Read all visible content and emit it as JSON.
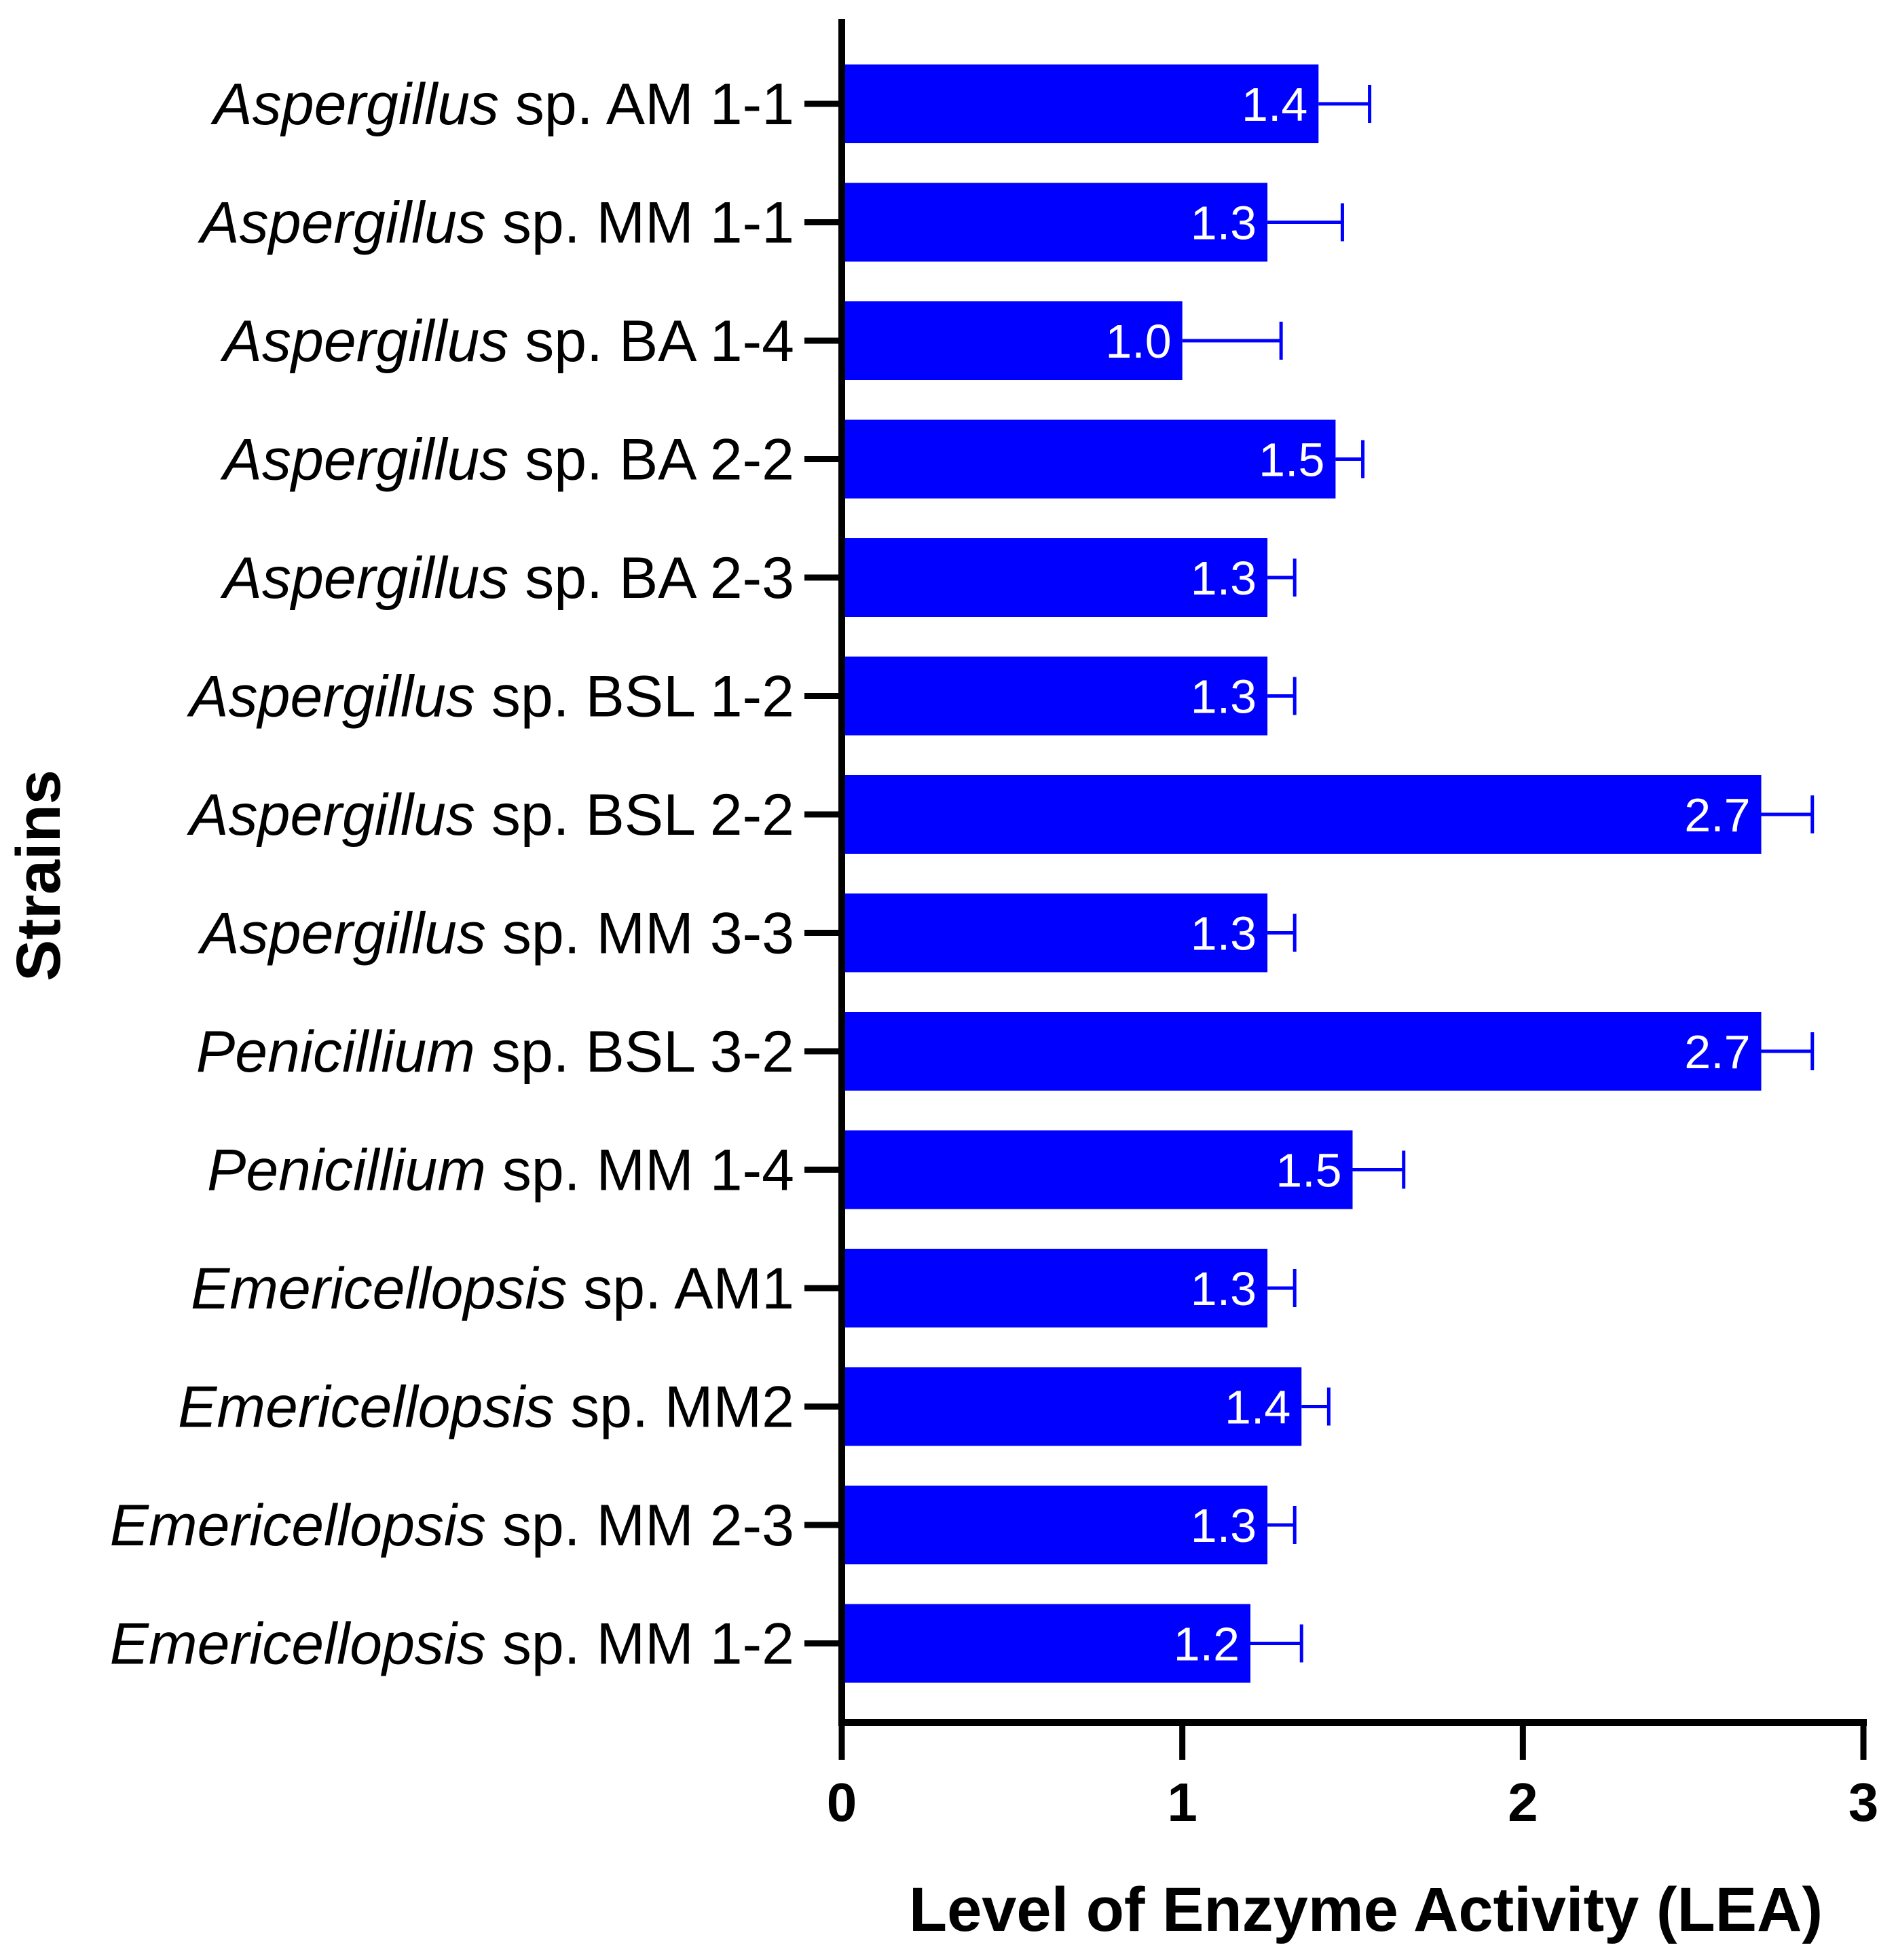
{
  "chart_data": {
    "type": "bar",
    "orientation": "horizontal",
    "title": "",
    "xlabel": "Level of Enzyme Activity (LEA)",
    "ylabel": "Strains",
    "xlim": [
      0,
      3
    ],
    "xticks": [
      "0",
      "1",
      "2",
      "3"
    ],
    "grid": false,
    "bar_color": "#0000FF",
    "error_bar_color": "#0000FF",
    "categories": [
      {
        "genus": "Aspergillus",
        "suffix": " sp. AM 1-1"
      },
      {
        "genus": "Aspergillus",
        "suffix": " sp. MM 1-1"
      },
      {
        "genus": "Aspergillus",
        "suffix": " sp. BA 1-4"
      },
      {
        "genus": "Aspergillus",
        "suffix": " sp. BA 2-2"
      },
      {
        "genus": "Aspergillus",
        "suffix": " sp. BA 2-3"
      },
      {
        "genus": "Aspergillus",
        "suffix": " sp. BSL 1-2"
      },
      {
        "genus": "Aspergillus",
        "suffix": " sp. BSL 2-2"
      },
      {
        "genus": "Aspergillus",
        "suffix": " sp. MM 3-3"
      },
      {
        "genus": "Penicillium",
        "suffix": " sp. BSL 3-2"
      },
      {
        "genus": "Penicillium",
        "suffix": " sp. MM 1-4"
      },
      {
        "genus": "Emericellopsis",
        "suffix": " sp. AM1"
      },
      {
        "genus": "Emericellopsis",
        "suffix": " sp. MM2"
      },
      {
        "genus": "Emericellopsis",
        "suffix": " sp. MM 2-3"
      },
      {
        "genus": "Emericellopsis",
        "suffix": " sp. MM 1-2"
      }
    ],
    "values": [
      1.4,
      1.25,
      1.0,
      1.45,
      1.25,
      1.25,
      2.7,
      1.25,
      2.7,
      1.5,
      1.25,
      1.35,
      1.25,
      1.2
    ],
    "errors": [
      0.15,
      0.22,
      0.29,
      0.08,
      0.08,
      0.08,
      0.15,
      0.08,
      0.15,
      0.15,
      0.08,
      0.08,
      0.08,
      0.15
    ],
    "data_labels": [
      "1.4",
      "1.3",
      "1.0",
      "1.5",
      "1.3",
      "1.3",
      "2.7",
      "1.3",
      "2.7",
      "1.5",
      "1.3",
      "1.4",
      "1.3",
      "1.2"
    ]
  }
}
